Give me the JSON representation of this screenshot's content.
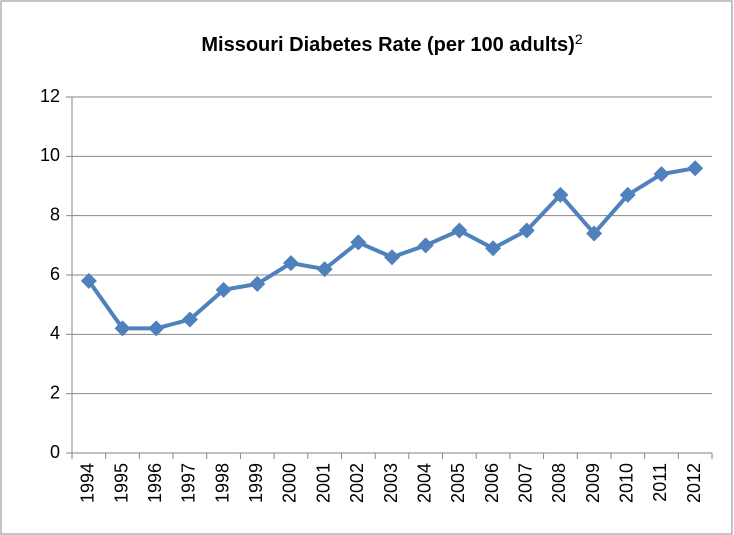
{
  "chart_data": {
    "type": "line",
    "title": "Missouri Diabetes Rate (per 100 adults)",
    "title_note": "2",
    "categories": [
      "1994",
      "1995",
      "1996",
      "1997",
      "1998",
      "1999",
      "2000",
      "2001",
      "2002",
      "2003",
      "2004",
      "2005",
      "2006",
      "2007",
      "2008",
      "2009",
      "2010",
      "2011",
      "2012"
    ],
    "series": [
      {
        "name": "Missouri Diabetes Rate",
        "color": "#4f81bd",
        "values": [
          5.8,
          4.2,
          4.2,
          4.5,
          5.5,
          5.7,
          6.4,
          6.2,
          7.1,
          6.6,
          7.0,
          7.5,
          6.9,
          7.5,
          8.7,
          7.4,
          8.7,
          9.4,
          9.6
        ]
      }
    ],
    "ylim": [
      0,
      12
    ],
    "yticks": [
      0,
      2,
      4,
      6,
      8,
      10,
      12
    ],
    "grid": true
  }
}
